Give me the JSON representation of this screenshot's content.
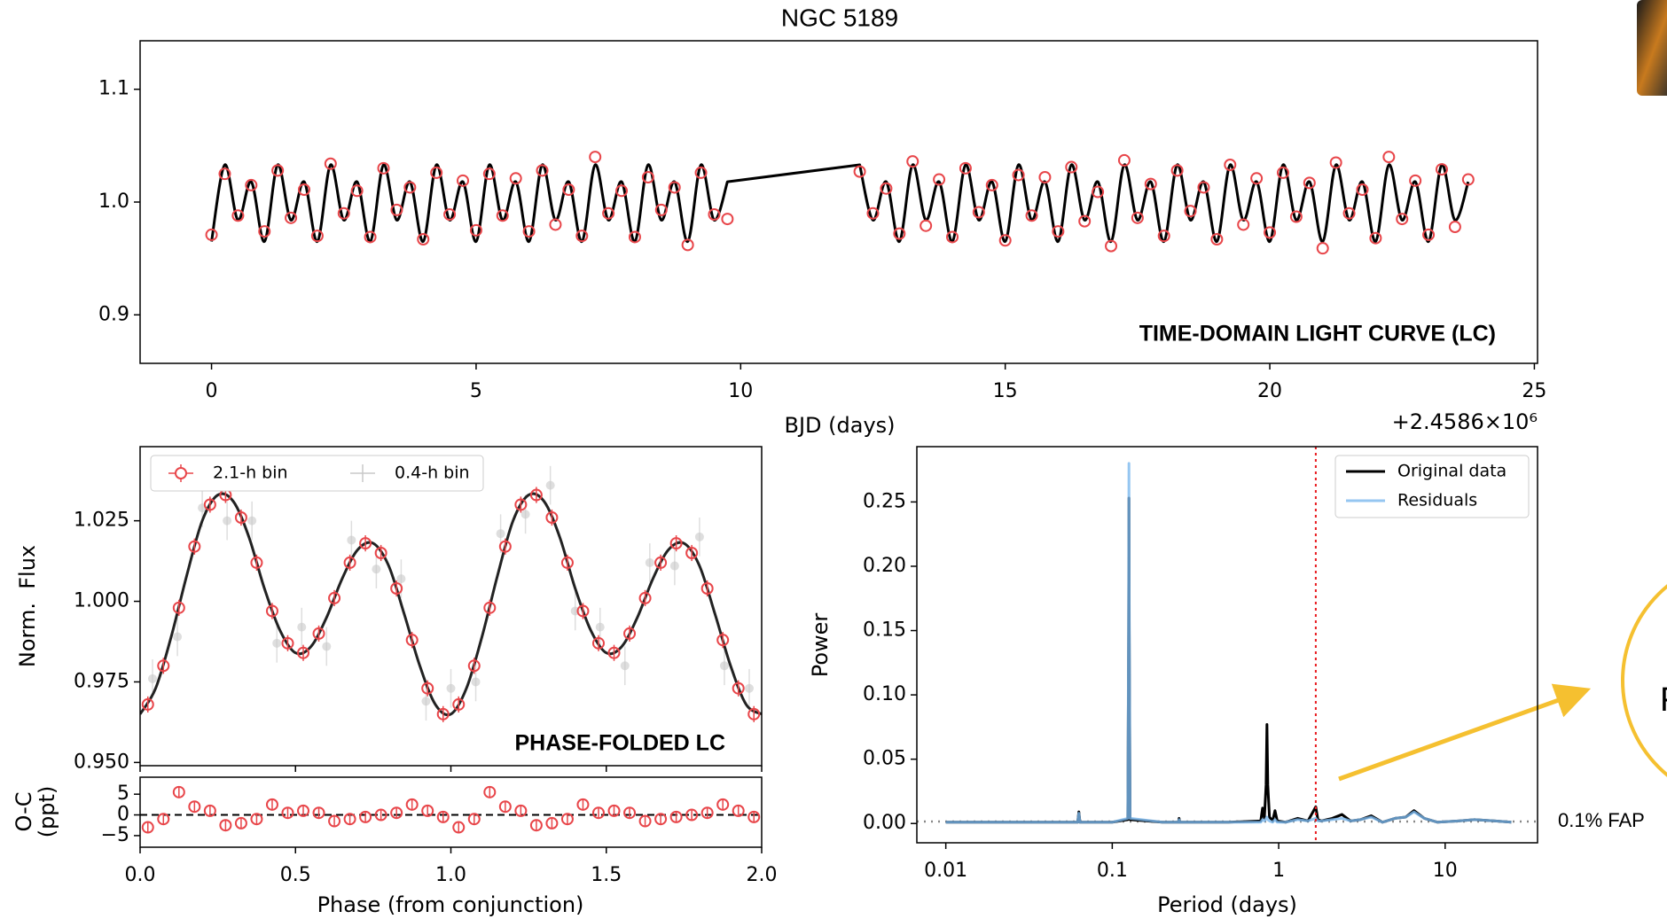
{
  "chart_data": [
    {
      "type": "line",
      "title": "NGC 5189",
      "xlabel": "BJD (days)",
      "x_offset_label": "+2.4586×10⁶",
      "annotation": "TIME-DOMAIN LIGHT CURVE (LC)",
      "xlim": [
        -1.35,
        25.06
      ],
      "ylim": [
        0.857,
        1.143
      ],
      "xticks": [
        0,
        5,
        10,
        15,
        20,
        25
      ],
      "yticks": [
        0.9,
        {
          "value": 1,
          "label": "1.0"
        },
        1.1
      ],
      "x": [
        0,
        0.25,
        0.5,
        0.75,
        1,
        1.25,
        1.5,
        1.75,
        2,
        2.25,
        2.5,
        2.75,
        3,
        3.25,
        3.5,
        3.75,
        4,
        4.25,
        4.5,
        4.75,
        5,
        5.25,
        5.5,
        5.75,
        6,
        6.25,
        6.5,
        6.75,
        7,
        7.25,
        7.5,
        7.75,
        8,
        8.25,
        8.5,
        8.75,
        9,
        9.25,
        9.5,
        9.75,
        12.25,
        12.5,
        12.75,
        13,
        13.25,
        13.5,
        13.75,
        14,
        14.25,
        14.5,
        14.75,
        15,
        15.25,
        15.5,
        15.75,
        16,
        16.25,
        16.5,
        16.75,
        17,
        17.25,
        17.5,
        17.75,
        18,
        18.25,
        18.5,
        18.75,
        19,
        19.25,
        19.5,
        19.75,
        20,
        20.25,
        20.5,
        20.75,
        21,
        21.25,
        21.5,
        21.75,
        22,
        22.25,
        22.5,
        22.75,
        23,
        23.25,
        23.5,
        23.75
      ],
      "series": [
        {
          "style": "line",
          "color": "#000000",
          "values": [
            0.965,
            1.033,
            0.984,
            1.018,
            0.965,
            1.033,
            0.984,
            1.018,
            0.965,
            1.033,
            0.984,
            1.018,
            0.965,
            1.033,
            0.984,
            1.018,
            0.965,
            1.033,
            0.984,
            1.018,
            0.965,
            1.033,
            0.984,
            1.018,
            0.965,
            1.033,
            0.984,
            1.018,
            0.965,
            1.033,
            0.984,
            1.018,
            0.965,
            1.033,
            0.984,
            1.018,
            0.965,
            1.033,
            0.984,
            1.018,
            1.033,
            0.984,
            1.018,
            0.965,
            1.033,
            0.984,
            1.018,
            0.965,
            1.033,
            0.984,
            1.018,
            0.965,
            1.033,
            0.984,
            1.018,
            0.965,
            1.033,
            0.984,
            1.018,
            0.965,
            1.033,
            0.984,
            1.018,
            0.965,
            1.033,
            0.984,
            1.018,
            0.965,
            1.033,
            0.984,
            1.018,
            0.965,
            1.033,
            0.984,
            1.018,
            0.965,
            1.033,
            0.984,
            1.018,
            0.965,
            1.033,
            0.984,
            1.018,
            0.965,
            1.033,
            0.984,
            1.018
          ]
        },
        {
          "style": "markers",
          "marker": "circle",
          "color": "#e8464a",
          "values": [
            0.971,
            1.025,
            0.988,
            1.015,
            0.974,
            1.028,
            0.986,
            1.011,
            0.97,
            1.034,
            0.99,
            1.01,
            0.969,
            1.03,
            0.993,
            1.013,
            0.967,
            1.026,
            0.989,
            1.019,
            0.975,
            1.025,
            0.988,
            1.021,
            0.974,
            1.028,
            0.98,
            1.011,
            0.97,
            1.04,
            0.99,
            1.01,
            0.969,
            1.022,
            0.993,
            1.013,
            0.962,
            1.026,
            0.989,
            0.985,
            1.027,
            0.99,
            1.012,
            0.972,
            1.036,
            0.979,
            1.02,
            0.969,
            1.03,
            0.991,
            1.015,
            0.966,
            1.024,
            0.988,
            1.022,
            0.974,
            1.031,
            0.983,
            1.009,
            0.961,
            1.037,
            0.986,
            1.016,
            0.97,
            1.028,
            0.992,
            1.013,
            0.967,
            1.033,
            0.98,
            1.021,
            0.973,
            1.026,
            0.987,
            1.017,
            0.959,
            1.035,
            0.99,
            1.011,
            0.968,
            1.04,
            0.985,
            1.019,
            0.971,
            1.029,
            0.978,
            1.02
          ]
        }
      ]
    },
    {
      "type": "line",
      "ylabel": "Norm.  Flux",
      "xlabel": "Phase (from conjunction)",
      "annotation": "PHASE-FOLDED LC",
      "legend": "upper left",
      "xlim": [
        0,
        2
      ],
      "ylim": [
        0.949,
        1.048
      ],
      "xticks": [
        {
          "value": 0,
          "label": "0.0"
        },
        0.5,
        {
          "value": 1,
          "label": "1.0"
        },
        1.5,
        {
          "value": 2,
          "label": "2.0"
        }
      ],
      "yticks": [
        {
          "value": 0.95,
          "label": "0.950"
        },
        0.975,
        {
          "value": 1,
          "label": "1.000"
        },
        1.025
      ],
      "series": [
        {
          "name": "2.1-h bin",
          "style": "markers",
          "marker": "circle",
          "color": "#e8464a",
          "yerr": 0.0025,
          "x": [
            0.025,
            0.075,
            0.125,
            0.175,
            0.225,
            0.275,
            0.325,
            0.375,
            0.425,
            0.475,
            0.525,
            0.575,
            0.625,
            0.675,
            0.725,
            0.775,
            0.825,
            0.875,
            0.925,
            0.975,
            1.025,
            1.075,
            1.125,
            1.175,
            1.225,
            1.275,
            1.325,
            1.375,
            1.425,
            1.475,
            1.525,
            1.575,
            1.625,
            1.675,
            1.725,
            1.775,
            1.825,
            1.875,
            1.925,
            1.975
          ],
          "values": [
            0.968,
            0.98,
            0.998,
            1.017,
            1.03,
            1.033,
            1.026,
            1.012,
            0.997,
            0.987,
            0.984,
            0.99,
            1.001,
            1.012,
            1.018,
            1.015,
            1.004,
            0.988,
            0.973,
            0.965,
            0.968,
            0.98,
            0.998,
            1.017,
            1.03,
            1.033,
            1.026,
            1.012,
            0.997,
            0.987,
            0.984,
            0.99,
            1.001,
            1.012,
            1.018,
            1.015,
            1.004,
            0.988,
            0.973,
            0.965
          ]
        },
        {
          "name": "0.4-h bin",
          "style": "markers",
          "marker": "dot",
          "color": "#c8c8c8",
          "yerr": 0.006,
          "x": [
            0.04,
            0.12,
            0.2,
            0.28,
            0.36,
            0.44,
            0.52,
            0.6,
            0.68,
            0.76,
            0.84,
            0.92,
            1.0,
            1.08,
            1.16,
            1.24,
            1.32,
            1.4,
            1.48,
            1.56,
            1.64,
            1.72,
            1.8,
            1.88,
            1.96
          ],
          "values": [
            0.976,
            0.989,
            1.029,
            1.025,
            1.025,
            0.987,
            0.992,
            0.986,
            1.019,
            1.01,
            1.007,
            0.969,
            0.973,
            0.975,
            1.021,
            1.027,
            1.036,
            0.997,
            0.992,
            0.98,
            1.012,
            1.011,
            1.02,
            0.98,
            0.973
          ]
        },
        {
          "style": "line",
          "color": "#222222",
          "x": [
            0,
            0.05,
            0.1,
            0.15,
            0.2,
            0.25,
            0.3,
            0.35,
            0.4,
            0.45,
            0.5,
            0.55,
            0.6,
            0.65,
            0.7,
            0.75,
            0.8,
            0.85,
            0.9,
            0.95,
            1,
            1.05,
            1.1,
            1.15,
            1.2,
            1.25,
            1.3,
            1.35,
            1.4,
            1.45,
            1.5,
            1.55,
            1.6,
            1.65,
            1.7,
            1.75,
            1.8,
            1.85,
            1.9,
            1.95,
            2
          ],
          "values": [
            0.965,
            0.973,
            0.989,
            1.008,
            1.025,
            1.033,
            1.031,
            1.02,
            1.004,
            0.991,
            0.984,
            0.986,
            0.995,
            1.007,
            1.016,
            1.018,
            1.011,
            0.996,
            0.98,
            0.968,
            0.965,
            0.973,
            0.989,
            1.008,
            1.025,
            1.033,
            1.031,
            1.02,
            1.004,
            0.991,
            0.984,
            0.986,
            0.995,
            1.007,
            1.016,
            1.018,
            1.011,
            0.996,
            0.98,
            0.968,
            0.965
          ]
        }
      ],
      "residuals": {
        "ylabel": [
          "O-C",
          "(ppt)"
        ],
        "ylim": [
          -7.8,
          9.1
        ],
        "yticks": [
          5,
          0,
          {
            "value": -5,
            "label": "−5"
          }
        ],
        "color": "#e8464a",
        "yerr": 1.2,
        "values": [
          -3,
          -1,
          5.5,
          2,
          1,
          -2.5,
          -2,
          -1,
          2.5,
          0.5,
          1,
          0.5,
          -1.5,
          -1,
          -0.5,
          0,
          0.5,
          2.5,
          1,
          -0.5,
          -3,
          -1,
          5.5,
          2,
          1,
          -2.5,
          -2,
          -1,
          2.5,
          0.5,
          1,
          0.5,
          -1.5,
          -1,
          -0.5,
          0,
          0.5,
          2.5,
          1,
          -0.5
        ]
      }
    },
    {
      "type": "line",
      "xscale": "log",
      "xlabel": "Period (days)",
      "ylabel": "Power",
      "legend": "upper right",
      "xlim": [
        0.0067,
        35.9
      ],
      "ylim": [
        -0.015,
        0.293
      ],
      "xticks": [
        0.01,
        0.1,
        1,
        10
      ],
      "yticks": [
        {
          "value": 0,
          "label": "0.00"
        },
        0.05,
        {
          "value": 0.1,
          "label": "0.10"
        },
        0.15,
        {
          "value": 0.2,
          "label": "0.20"
        },
        0.25
      ],
      "x": [
        0.01,
        0.03,
        0.062,
        0.063,
        0.064,
        0.1,
        0.124,
        0.1255,
        0.126,
        0.1265,
        0.128,
        0.2,
        0.25,
        0.252,
        0.254,
        0.5,
        0.78,
        0.8,
        0.82,
        0.84,
        0.85,
        0.86,
        0.88,
        0.92,
        0.95,
        0.98,
        1.1,
        1.3,
        1.5,
        1.67,
        1.72,
        1.8,
        2.1,
        2.4,
        2.7,
        3.1,
        3.6,
        4.2,
        5,
        5.8,
        6.5,
        7.5,
        9,
        12,
        15,
        20,
        25
      ],
      "series": [
        {
          "name": "Original data",
          "color": "#000000",
          "values": [
            0.001,
            0.001,
            0.001,
            0.009,
            0.001,
            0.001,
            0.003,
            0.15,
            0.253,
            0.15,
            0.003,
            0.001,
            0.001,
            0.004,
            0.001,
            0.001,
            0.002,
            0.012,
            0.004,
            0.03,
            0.077,
            0.03,
            0.005,
            0.002,
            0.01,
            0.002,
            0.001,
            0.004,
            0.002,
            0.013,
            0.003,
            0.002,
            0.004,
            0.007,
            0.002,
            0.003,
            0.006,
            0.001,
            0.004,
            0.005,
            0.01,
            0.004,
            0.001,
            0.002,
            0.003,
            0.002,
            0.001
          ]
        },
        {
          "name": "Residuals",
          "color": "#7ab8ee",
          "opacity": 0.8,
          "values": [
            0.001,
            0.001,
            0.001,
            0.008,
            0.001,
            0.001,
            0.004,
            0.17,
            0.28,
            0.17,
            0.004,
            0.001,
            0.001,
            0.003,
            0.001,
            0.001,
            0.001,
            0.003,
            0.002,
            0.004,
            0.005,
            0.003,
            0.002,
            0.001,
            0.003,
            0.001,
            0.001,
            0.003,
            0.002,
            0.004,
            0.002,
            0.002,
            0.003,
            0.004,
            0.002,
            0.003,
            0.005,
            0.001,
            0.004,
            0.005,
            0.009,
            0.004,
            0.001,
            0.002,
            0.003,
            0.002,
            0.001
          ]
        }
      ],
      "vline": {
        "x": 1.67,
        "color": "#e8191e"
      },
      "fap": {
        "value": 0.0015,
        "label": "0.1% FAP"
      },
      "callout": "F"
    }
  ]
}
